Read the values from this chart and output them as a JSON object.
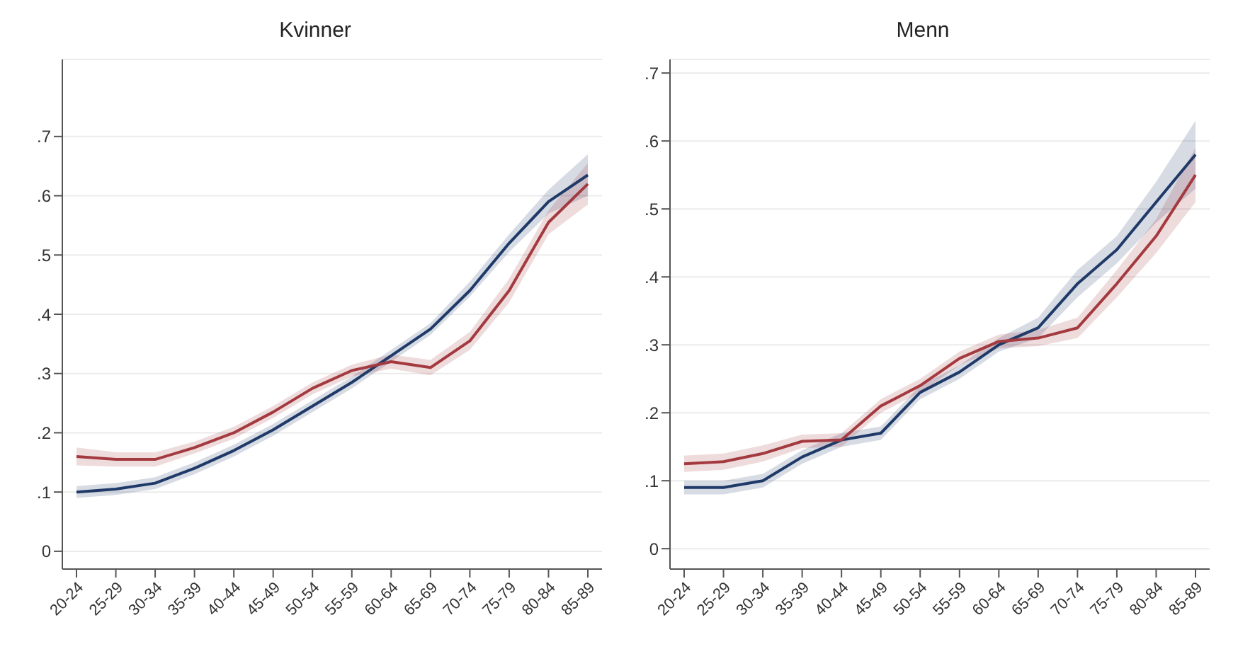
{
  "chart_data": [
    {
      "type": "line",
      "title": "Kvinner",
      "categories": [
        "20-24",
        "25-29",
        "30-34",
        "35-39",
        "40-44",
        "45-49",
        "50-54",
        "55-59",
        "60-64",
        "65-69",
        "70-74",
        "75-79",
        "80-84",
        "85-89"
      ],
      "series": [
        {
          "color": "#1f3a68",
          "values": [
            0.1,
            0.105,
            0.115,
            0.14,
            0.17,
            0.205,
            0.245,
            0.285,
            0.33,
            0.375,
            0.44,
            0.52,
            0.59,
            0.635
          ],
          "lower": [
            0.09,
            0.095,
            0.105,
            0.13,
            0.16,
            0.195,
            0.235,
            0.275,
            0.32,
            0.365,
            0.43,
            0.505,
            0.57,
            0.6
          ],
          "upper": [
            0.11,
            0.115,
            0.125,
            0.15,
            0.18,
            0.215,
            0.255,
            0.295,
            0.34,
            0.385,
            0.455,
            0.535,
            0.61,
            0.67
          ]
        },
        {
          "color": "#a33a3f",
          "values": [
            0.16,
            0.155,
            0.155,
            0.175,
            0.2,
            0.235,
            0.275,
            0.305,
            0.32,
            0.31,
            0.355,
            0.44,
            0.555,
            0.62
          ],
          "lower": [
            0.145,
            0.143,
            0.143,
            0.165,
            0.19,
            0.225,
            0.265,
            0.295,
            0.308,
            0.297,
            0.34,
            0.42,
            0.535,
            0.585
          ],
          "upper": [
            0.175,
            0.167,
            0.167,
            0.185,
            0.21,
            0.245,
            0.285,
            0.315,
            0.332,
            0.323,
            0.37,
            0.46,
            0.575,
            0.655
          ]
        }
      ],
      "ylim": [
        -0.03,
        0.83
      ],
      "yticks": [
        0,
        {
          "value": 0.1,
          "label": ".1"
        },
        {
          "value": 0.2,
          "label": ".2"
        },
        {
          "value": 0.3,
          "label": ".3"
        },
        {
          "value": 0.4,
          "label": ".4"
        },
        {
          "value": 0.5,
          "label": ".5"
        },
        {
          "value": 0.6,
          "label": ".6"
        },
        {
          "value": 0.7,
          "label": ".7"
        }
      ],
      "grid": "y",
      "legend": false
    },
    {
      "type": "line",
      "title": "Menn",
      "categories": [
        "20-24",
        "25-29",
        "30-34",
        "35-39",
        "40-44",
        "45-49",
        "50-54",
        "55-59",
        "60-64",
        "65-69",
        "70-74",
        "75-79",
        "80-84",
        "85-89"
      ],
      "series": [
        {
          "color": "#1f3a68",
          "values": [
            0.09,
            0.09,
            0.1,
            0.135,
            0.16,
            0.17,
            0.23,
            0.26,
            0.3,
            0.325,
            0.39,
            0.44,
            0.51,
            0.58
          ],
          "lower": [
            0.08,
            0.08,
            0.09,
            0.125,
            0.15,
            0.16,
            0.22,
            0.25,
            0.29,
            0.31,
            0.37,
            0.42,
            0.48,
            0.53
          ],
          "upper": [
            0.1,
            0.1,
            0.11,
            0.145,
            0.17,
            0.18,
            0.24,
            0.27,
            0.31,
            0.34,
            0.41,
            0.46,
            0.54,
            0.63
          ]
        },
        {
          "color": "#a33a3f",
          "values": [
            0.125,
            0.128,
            0.14,
            0.158,
            0.16,
            0.21,
            0.24,
            0.28,
            0.305,
            0.31,
            0.325,
            0.39,
            0.46,
            0.55
          ],
          "lower": [
            0.113,
            0.116,
            0.128,
            0.148,
            0.15,
            0.2,
            0.23,
            0.27,
            0.295,
            0.298,
            0.31,
            0.37,
            0.435,
            0.51
          ],
          "upper": [
            0.137,
            0.14,
            0.152,
            0.168,
            0.17,
            0.22,
            0.25,
            0.29,
            0.315,
            0.322,
            0.34,
            0.41,
            0.485,
            0.59
          ]
        }
      ],
      "ylim": [
        -0.03,
        0.72
      ],
      "yticks": [
        0,
        {
          "value": 0.1,
          "label": ".1"
        },
        {
          "value": 0.2,
          "label": ".2"
        },
        {
          "value": 0.3,
          "label": ".3"
        },
        {
          "value": 0.4,
          "label": ".4"
        },
        {
          "value": 0.5,
          "label": ".5"
        },
        {
          "value": 0.6,
          "label": ".6"
        },
        {
          "value": 0.7,
          "label": ".7"
        }
      ],
      "grid": "y",
      "legend": false
    }
  ]
}
